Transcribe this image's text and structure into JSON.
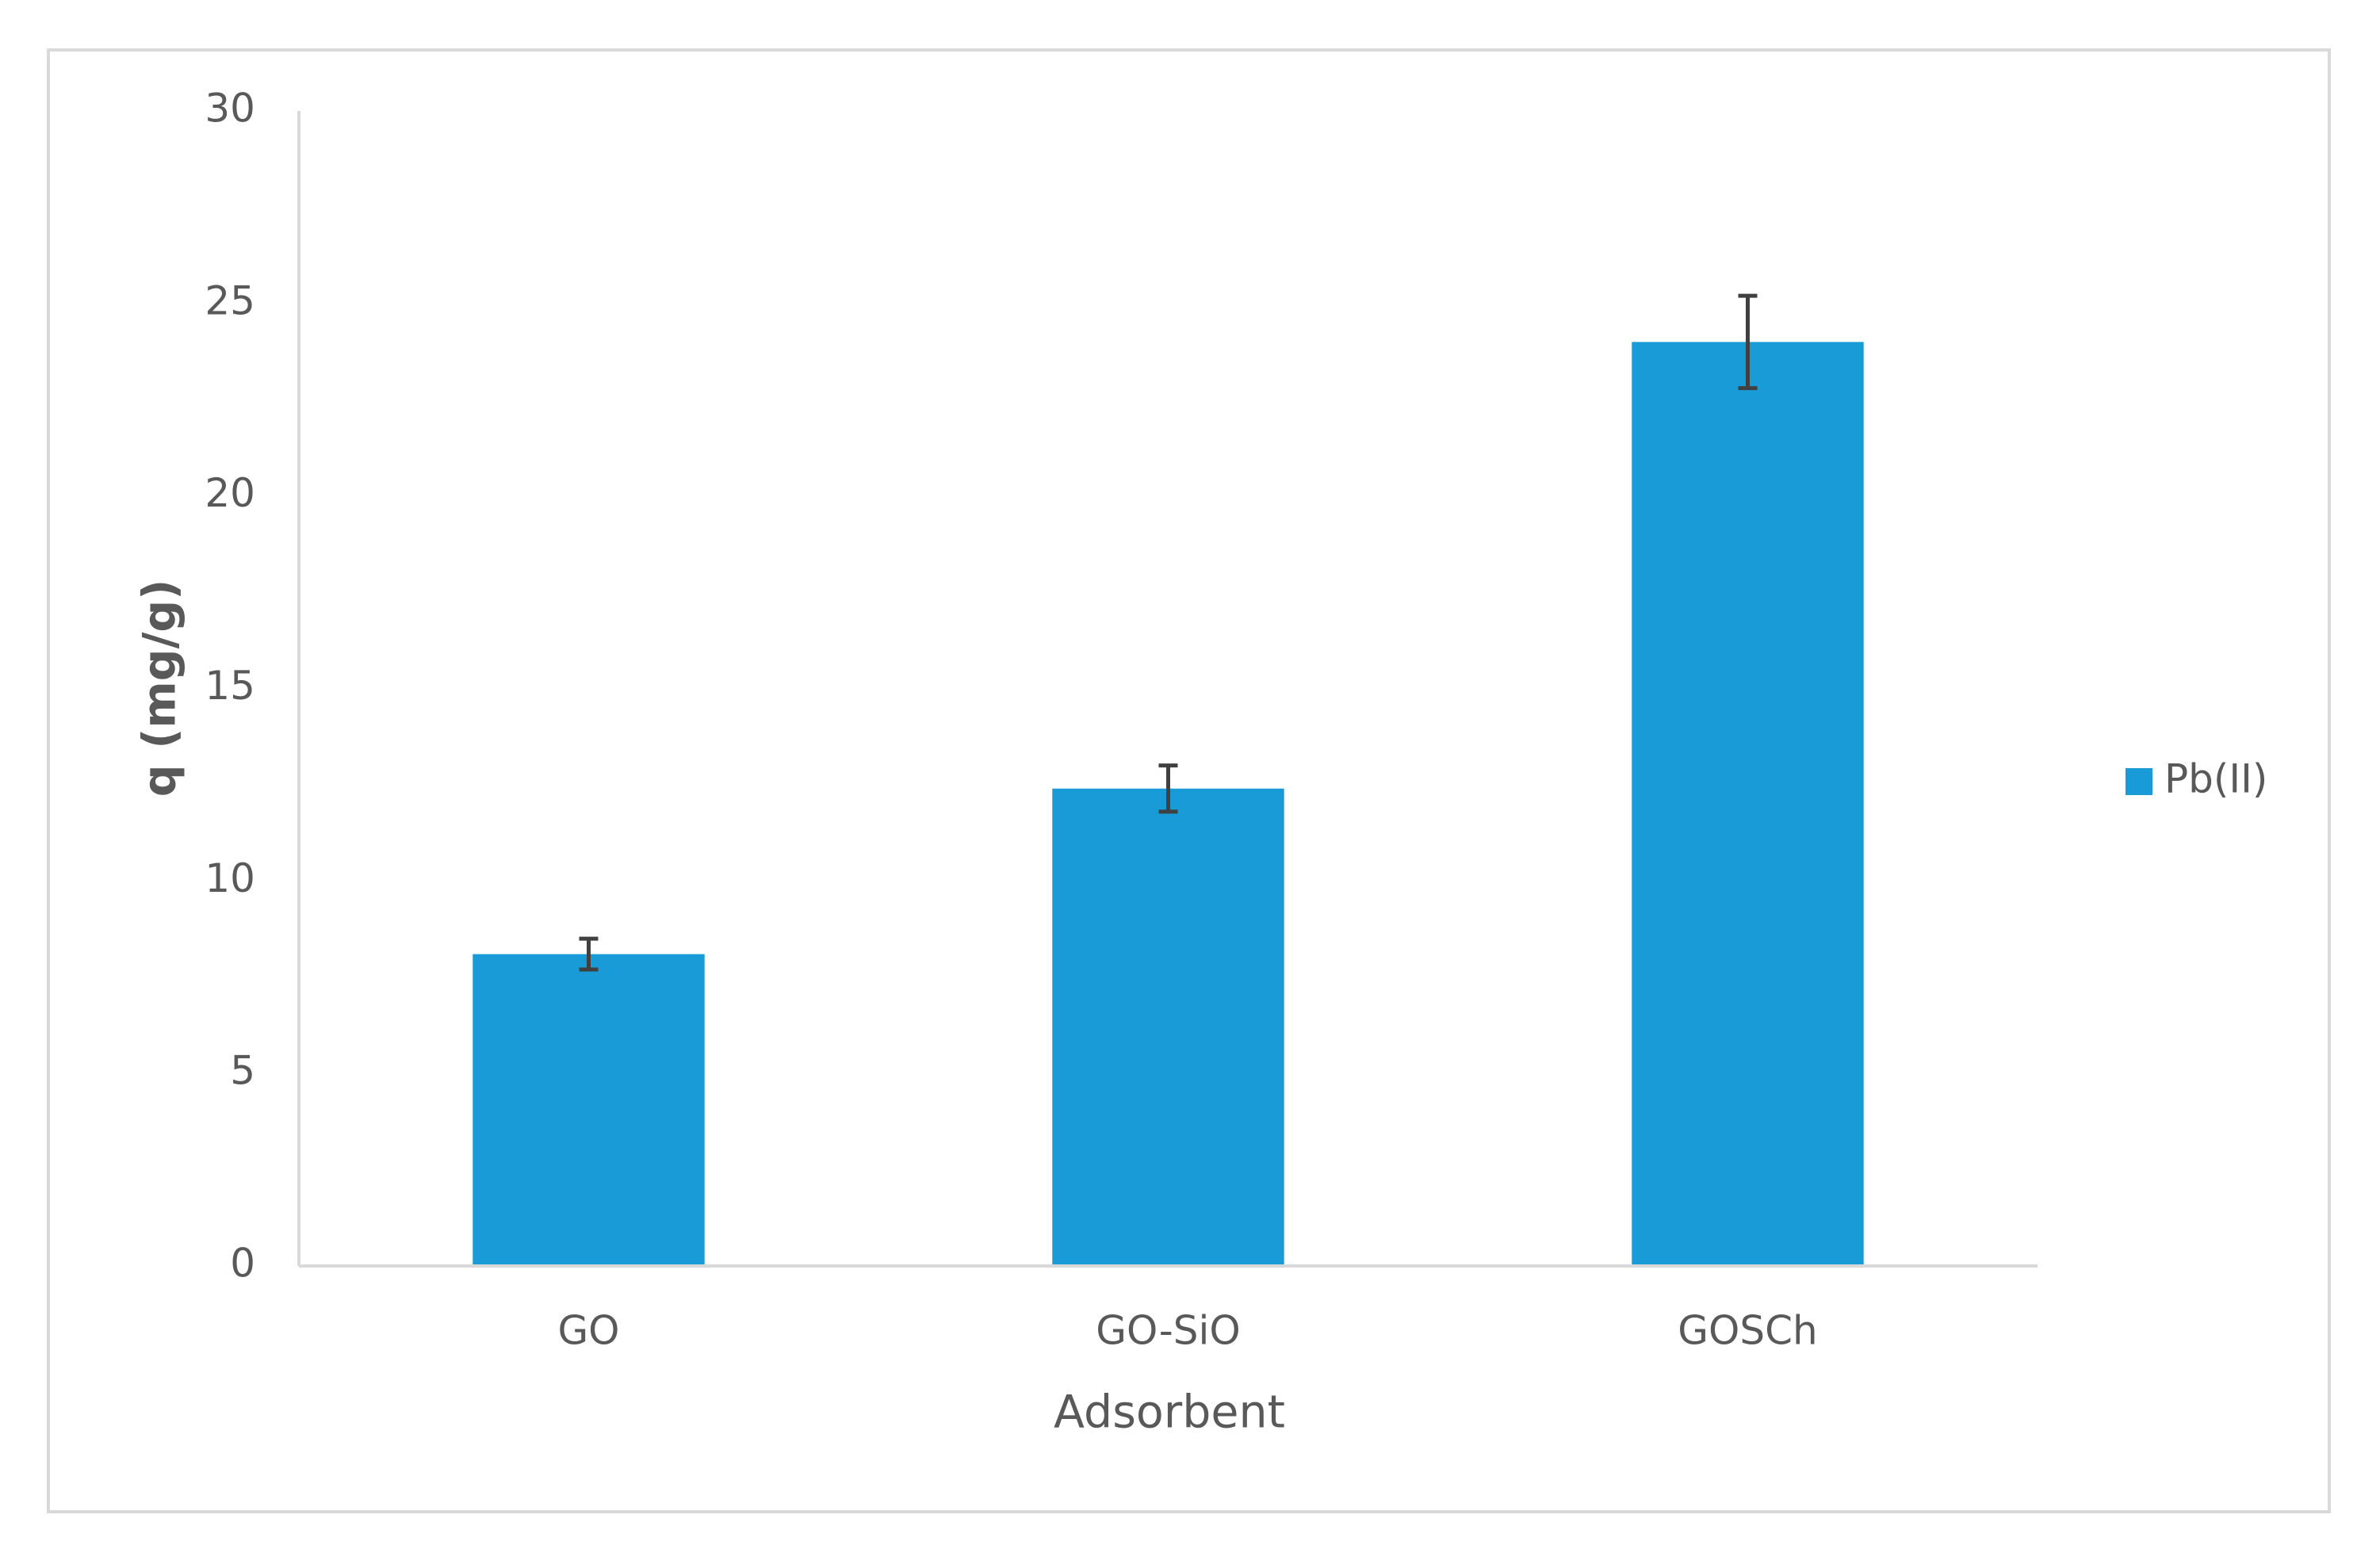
{
  "chart_data": {
    "type": "bar",
    "x_label": "Adsorbent",
    "y_label": "q (mg/g)",
    "categories": [
      "GO",
      "GO-SiO",
      "GOSCh"
    ],
    "series": [
      {
        "name": "Pb(II)",
        "color": "#189bd7",
        "values": [
          8.1,
          12.4,
          24.0
        ],
        "errors": [
          0.4,
          0.6,
          1.2
        ]
      }
    ],
    "ylim": [
      0,
      30
    ],
    "yticks": [
      0,
      5,
      10,
      15,
      20,
      25,
      30
    ],
    "legend": "right"
  }
}
